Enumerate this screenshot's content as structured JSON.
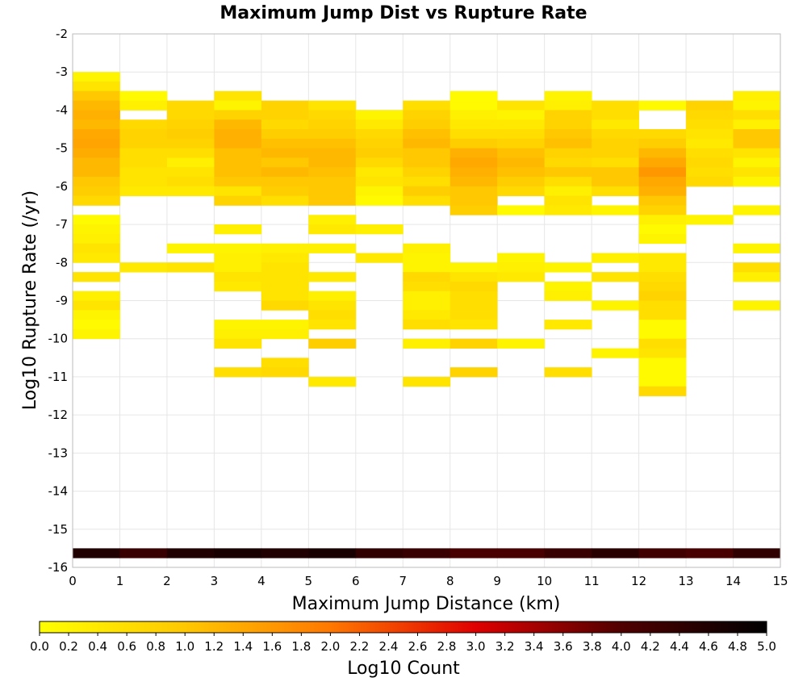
{
  "chart_data": {
    "type": "heatmap",
    "title": "Maximum Jump Dist vs Rupture Rate",
    "xlabel": "Maximum Jump Distance (km)",
    "ylabel": "Log10 Rupture Rate (/yr)",
    "xlim": [
      0,
      15
    ],
    "ylim": [
      -16,
      -2
    ],
    "x_ticks": [
      "0",
      "1",
      "2",
      "3",
      "4",
      "5",
      "6",
      "7",
      "8",
      "9",
      "10",
      "11",
      "12",
      "13",
      "14",
      "15"
    ],
    "y_ticks": [
      "-2",
      "-3",
      "-4",
      "-5",
      "-6",
      "-7",
      "-8",
      "-9",
      "-10",
      "-11",
      "-12",
      "-13",
      "-14",
      "-15",
      "-16"
    ],
    "bin_width_x": 1,
    "bin_height_y": 0.25,
    "grid": true,
    "colorbar": {
      "label": "Log10 Count",
      "min": 0.0,
      "max": 5.0,
      "ticks": [
        "0.0",
        "0.2",
        "0.4",
        "0.6",
        "0.8",
        "1.0",
        "1.2",
        "1.4",
        "1.6",
        "1.8",
        "2.0",
        "2.2",
        "2.4",
        "2.6",
        "2.8",
        "3.0",
        "3.2",
        "3.4",
        "3.6",
        "3.8",
        "4.0",
        "4.2",
        "4.4",
        "4.6",
        "4.8",
        "5.0"
      ],
      "colors": [
        "#ffff00",
        "#ffc800",
        "#ff7800",
        "#e00000",
        "#500000",
        "#000000"
      ]
    },
    "cells": [
      [
        0,
        -3.25,
        0.2
      ],
      [
        0,
        -3.5,
        0.5
      ],
      [
        0,
        -3.75,
        1.0
      ],
      [
        0,
        -4.0,
        1.2
      ],
      [
        0,
        -4.25,
        1.3
      ],
      [
        0,
        -4.5,
        1.2
      ],
      [
        0,
        -4.75,
        1.4
      ],
      [
        0,
        -5.0,
        1.45
      ],
      [
        0,
        -5.25,
        1.35
      ],
      [
        0,
        -5.5,
        1.2
      ],
      [
        0,
        -5.75,
        1.2
      ],
      [
        0,
        -6.0,
        1.0
      ],
      [
        0,
        -6.25,
        0.9
      ],
      [
        0,
        -6.5,
        0.7
      ],
      [
        0,
        -7.0,
        0.1
      ],
      [
        0,
        -7.25,
        0.2
      ],
      [
        0,
        -7.5,
        0.3
      ],
      [
        0,
        -7.75,
        0.5
      ],
      [
        0,
        -8.0,
        0.4
      ],
      [
        0,
        -8.5,
        0.5
      ],
      [
        0,
        -9.0,
        0.3
      ],
      [
        0,
        -9.25,
        0.5
      ],
      [
        0,
        -9.5,
        0.2
      ],
      [
        0,
        -9.75,
        0.1
      ],
      [
        0,
        -10.0,
        0.2
      ],
      [
        1,
        -3.75,
        0.1
      ],
      [
        1,
        -4.0,
        0.3
      ],
      [
        1,
        -4.5,
        0.7
      ],
      [
        1,
        -4.75,
        0.8
      ],
      [
        1,
        -5.0,
        0.8
      ],
      [
        1,
        -5.25,
        0.6
      ],
      [
        1,
        -5.5,
        0.6
      ],
      [
        1,
        -5.75,
        0.5
      ],
      [
        1,
        -6.0,
        0.5
      ],
      [
        1,
        -6.25,
        0.4
      ],
      [
        1,
        -8.25,
        0.4
      ],
      [
        2,
        -4.0,
        0.7
      ],
      [
        2,
        -4.25,
        0.7
      ],
      [
        2,
        -4.5,
        0.8
      ],
      [
        2,
        -4.75,
        0.9
      ],
      [
        2,
        -5.0,
        0.8
      ],
      [
        2,
        -5.25,
        0.6
      ],
      [
        2,
        -5.5,
        0.3
      ],
      [
        2,
        -5.75,
        0.5
      ],
      [
        2,
        -6.0,
        0.6
      ],
      [
        2,
        -6.25,
        0.4
      ],
      [
        2,
        -7.75,
        0.2
      ],
      [
        2,
        -8.25,
        0.5
      ],
      [
        3,
        -3.75,
        0.5
      ],
      [
        3,
        -4.0,
        0.2
      ],
      [
        3,
        -4.25,
        0.8
      ],
      [
        3,
        -4.5,
        1.2
      ],
      [
        3,
        -4.75,
        1.3
      ],
      [
        3,
        -5.0,
        1.3
      ],
      [
        3,
        -5.25,
        1.1
      ],
      [
        3,
        -5.5,
        1.1
      ],
      [
        3,
        -5.75,
        1.1
      ],
      [
        3,
        -6.0,
        1.0
      ],
      [
        3,
        -6.25,
        0.5
      ],
      [
        3,
        -6.5,
        0.8
      ],
      [
        3,
        -7.25,
        0.3
      ],
      [
        3,
        -7.75,
        0.2
      ],
      [
        3,
        -8.0,
        0.3
      ],
      [
        3,
        -8.25,
        0.3
      ],
      [
        3,
        -8.5,
        0.5
      ],
      [
        3,
        -8.75,
        0.4
      ],
      [
        3,
        -9.75,
        0.2
      ],
      [
        3,
        -10.0,
        0.3
      ],
      [
        3,
        -10.25,
        0.5
      ],
      [
        3,
        -11.0,
        0.6
      ],
      [
        4,
        -4.0,
        0.8
      ],
      [
        4,
        -4.25,
        0.8
      ],
      [
        4,
        -4.5,
        0.7
      ],
      [
        4,
        -4.75,
        0.9
      ],
      [
        4,
        -5.0,
        1.1
      ],
      [
        4,
        -5.25,
        1.2
      ],
      [
        4,
        -5.5,
        1.0
      ],
      [
        4,
        -5.75,
        1.2
      ],
      [
        4,
        -6.0,
        1.0
      ],
      [
        4,
        -6.25,
        0.9
      ],
      [
        4,
        -6.5,
        0.6
      ],
      [
        4,
        -7.75,
        0.3
      ],
      [
        4,
        -8.0,
        0.4
      ],
      [
        4,
        -8.25,
        0.5
      ],
      [
        4,
        -8.5,
        0.5
      ],
      [
        4,
        -8.75,
        0.5
      ],
      [
        4,
        -9.0,
        0.5
      ],
      [
        4,
        -9.25,
        0.7
      ],
      [
        4,
        -9.75,
        0.2
      ],
      [
        4,
        -10.0,
        0.3
      ],
      [
        4,
        -10.75,
        0.6
      ],
      [
        4,
        -11.0,
        0.7
      ],
      [
        5,
        -4.0,
        0.5
      ],
      [
        5,
        -4.25,
        0.7
      ],
      [
        5,
        -4.5,
        0.8
      ],
      [
        5,
        -4.75,
        0.9
      ],
      [
        5,
        -5.0,
        1.1
      ],
      [
        5,
        -5.25,
        1.2
      ],
      [
        5,
        -5.5,
        1.2
      ],
      [
        5,
        -5.75,
        1.1
      ],
      [
        5,
        -6.0,
        1.0
      ],
      [
        5,
        -6.25,
        1.0
      ],
      [
        5,
        -6.5,
        1.0
      ],
      [
        5,
        -7.0,
        0.3
      ],
      [
        5,
        -7.25,
        0.4
      ],
      [
        5,
        -7.75,
        0.3
      ],
      [
        5,
        -8.5,
        0.4
      ],
      [
        5,
        -9.0,
        0.3
      ],
      [
        5,
        -9.25,
        0.5
      ],
      [
        5,
        -9.5,
        0.6
      ],
      [
        5,
        -9.75,
        0.5
      ],
      [
        5,
        -10.25,
        0.9
      ],
      [
        5,
        -11.25,
        0.4
      ],
      [
        6,
        -4.25,
        0.2
      ],
      [
        6,
        -4.5,
        0.4
      ],
      [
        6,
        -4.75,
        0.7
      ],
      [
        6,
        -5.0,
        0.8
      ],
      [
        6,
        -5.25,
        0.9
      ],
      [
        6,
        -5.5,
        0.7
      ],
      [
        6,
        -5.75,
        0.4
      ],
      [
        6,
        -6.0,
        0.5
      ],
      [
        6,
        -6.25,
        0.2
      ],
      [
        6,
        -6.5,
        0.1
      ],
      [
        6,
        -7.25,
        0.3
      ],
      [
        6,
        -8.0,
        0.4
      ],
      [
        7,
        -4.0,
        0.6
      ],
      [
        7,
        -4.25,
        0.8
      ],
      [
        7,
        -4.5,
        0.9
      ],
      [
        7,
        -4.75,
        1.1
      ],
      [
        7,
        -5.0,
        1.2
      ],
      [
        7,
        -5.25,
        1.0
      ],
      [
        7,
        -5.5,
        1.0
      ],
      [
        7,
        -5.75,
        0.8
      ],
      [
        7,
        -6.0,
        0.6
      ],
      [
        7,
        -6.25,
        0.9
      ],
      [
        7,
        -6.5,
        0.6
      ],
      [
        7,
        -7.75,
        0.3
      ],
      [
        7,
        -8.0,
        0.2
      ],
      [
        7,
        -8.25,
        0.2
      ],
      [
        7,
        -8.5,
        0.7
      ],
      [
        7,
        -8.75,
        0.6
      ],
      [
        7,
        -9.0,
        0.3
      ],
      [
        7,
        -9.25,
        0.3
      ],
      [
        7,
        -9.5,
        0.4
      ],
      [
        7,
        -9.75,
        0.6
      ],
      [
        7,
        -10.25,
        0.3
      ],
      [
        7,
        -11.25,
        0.5
      ],
      [
        8,
        -3.75,
        0.1
      ],
      [
        8,
        -4.0,
        0.1
      ],
      [
        8,
        -4.25,
        0.3
      ],
      [
        8,
        -4.5,
        0.4
      ],
      [
        8,
        -4.75,
        0.6
      ],
      [
        8,
        -5.0,
        0.9
      ],
      [
        8,
        -5.25,
        1.3
      ],
      [
        8,
        -5.5,
        1.4
      ],
      [
        8,
        -5.75,
        1.3
      ],
      [
        8,
        -6.0,
        1.2
      ],
      [
        8,
        -6.25,
        1.0
      ],
      [
        8,
        -6.5,
        1.0
      ],
      [
        8,
        -6.75,
        0.9
      ],
      [
        8,
        -8.25,
        0.2
      ],
      [
        8,
        -8.5,
        0.5
      ],
      [
        8,
        -8.75,
        0.7
      ],
      [
        8,
        -9.0,
        0.6
      ],
      [
        8,
        -9.25,
        0.6
      ],
      [
        8,
        -9.5,
        0.6
      ],
      [
        8,
        -9.75,
        0.5
      ],
      [
        8,
        -10.25,
        0.8
      ],
      [
        8,
        -11.0,
        0.8
      ],
      [
        9,
        -4.0,
        0.5
      ],
      [
        9,
        -4.25,
        0.2
      ],
      [
        9,
        -4.5,
        0.4
      ],
      [
        9,
        -4.75,
        0.6
      ],
      [
        9,
        -5.0,
        0.8
      ],
      [
        9,
        -5.25,
        1.1
      ],
      [
        9,
        -5.5,
        1.2
      ],
      [
        9,
        -5.75,
        1.1
      ],
      [
        9,
        -6.0,
        0.9
      ],
      [
        9,
        -6.25,
        0.7
      ],
      [
        9,
        -6.75,
        0.1
      ],
      [
        9,
        -8.0,
        0.2
      ],
      [
        9,
        -8.25,
        0.3
      ],
      [
        9,
        -8.5,
        0.4
      ],
      [
        9,
        -10.25,
        0.2
      ],
      [
        10,
        -3.75,
        0.2
      ],
      [
        10,
        -4.0,
        0.3
      ],
      [
        10,
        -4.25,
        0.8
      ],
      [
        10,
        -4.5,
        0.8
      ],
      [
        10,
        -4.75,
        1.0
      ],
      [
        10,
        -5.0,
        1.1
      ],
      [
        10,
        -5.25,
        0.8
      ],
      [
        10,
        -5.5,
        0.7
      ],
      [
        10,
        -5.75,
        1.0
      ],
      [
        10,
        -6.0,
        0.6
      ],
      [
        10,
        -6.25,
        0.3
      ],
      [
        10,
        -6.5,
        0.5
      ],
      [
        10,
        -6.75,
        0.4
      ],
      [
        10,
        -8.25,
        0.2
      ],
      [
        10,
        -8.75,
        0.2
      ],
      [
        10,
        -9.0,
        0.3
      ],
      [
        10,
        -9.75,
        0.4
      ],
      [
        10,
        -11.0,
        0.6
      ],
      [
        11,
        -4.0,
        0.6
      ],
      [
        11,
        -4.25,
        0.6
      ],
      [
        11,
        -4.5,
        0.4
      ],
      [
        11,
        -4.75,
        0.7
      ],
      [
        11,
        -5.0,
        0.8
      ],
      [
        11,
        -5.25,
        0.8
      ],
      [
        11,
        -5.5,
        0.6
      ],
      [
        11,
        -5.75,
        1.0
      ],
      [
        11,
        -6.0,
        1.0
      ],
      [
        11,
        -6.25,
        0.6
      ],
      [
        11,
        -6.75,
        0.2
      ],
      [
        11,
        -8.0,
        0.3
      ],
      [
        11,
        -8.5,
        0.5
      ],
      [
        11,
        -9.25,
        0.2
      ],
      [
        11,
        -10.5,
        0.2
      ],
      [
        12,
        -4.0,
        0.1
      ],
      [
        12,
        -4.75,
        0.7
      ],
      [
        12,
        -5.0,
        0.9
      ],
      [
        12,
        -5.25,
        1.2
      ],
      [
        12,
        -5.5,
        1.4
      ],
      [
        12,
        -5.75,
        1.6
      ],
      [
        12,
        -6.0,
        1.4
      ],
      [
        12,
        -6.25,
        1.3
      ],
      [
        12,
        -6.5,
        1.0
      ],
      [
        12,
        -6.75,
        0.8
      ],
      [
        12,
        -7.0,
        0.3
      ],
      [
        12,
        -7.25,
        0.1
      ],
      [
        12,
        -7.5,
        0.2
      ],
      [
        12,
        -8.0,
        0.4
      ],
      [
        12,
        -8.25,
        0.4
      ],
      [
        12,
        -8.5,
        0.6
      ],
      [
        12,
        -8.75,
        0.7
      ],
      [
        12,
        -9.0,
        0.8
      ],
      [
        12,
        -9.25,
        0.6
      ],
      [
        12,
        -9.5,
        0.6
      ],
      [
        12,
        -9.75,
        0.1
      ],
      [
        12,
        -10.0,
        0.1
      ],
      [
        12,
        -10.25,
        0.6
      ],
      [
        12,
        -10.5,
        0.5
      ],
      [
        12,
        -10.75,
        0.1
      ],
      [
        12,
        -11.0,
        0.1
      ],
      [
        12,
        -11.25,
        0.1
      ],
      [
        12,
        -11.5,
        0.7
      ],
      [
        13,
        -4.0,
        0.8
      ],
      [
        13,
        -4.25,
        0.7
      ],
      [
        13,
        -4.5,
        0.6
      ],
      [
        13,
        -4.75,
        0.5
      ],
      [
        13,
        -5.0,
        0.4
      ],
      [
        13,
        -5.25,
        0.6
      ],
      [
        13,
        -5.5,
        0.7
      ],
      [
        13,
        -5.75,
        0.6
      ],
      [
        13,
        -6.0,
        0.7
      ],
      [
        13,
        -7.0,
        0.2
      ],
      [
        14,
        -3.75,
        0.3
      ],
      [
        14,
        -4.0,
        0.2
      ],
      [
        14,
        -4.25,
        0.6
      ],
      [
        14,
        -4.5,
        0.3
      ],
      [
        14,
        -4.75,
        1.0
      ],
      [
        14,
        -5.0,
        1.0
      ],
      [
        14,
        -5.25,
        0.5
      ],
      [
        14,
        -5.5,
        0.2
      ],
      [
        14,
        -5.75,
        0.5
      ],
      [
        14,
        -6.0,
        0.2
      ],
      [
        14,
        -6.75,
        0.2
      ],
      [
        14,
        -7.75,
        0.2
      ],
      [
        14,
        -8.25,
        0.6
      ],
      [
        14,
        -8.5,
        0.3
      ],
      [
        14,
        -9.25,
        0.2
      ],
      [
        0,
        -15.75,
        4.6
      ],
      [
        1,
        -15.75,
        4.3
      ],
      [
        2,
        -15.75,
        4.6
      ],
      [
        3,
        -15.75,
        4.7
      ],
      [
        4,
        -15.75,
        4.6
      ],
      [
        5,
        -15.75,
        4.7
      ],
      [
        6,
        -15.75,
        4.4
      ],
      [
        7,
        -15.75,
        4.3
      ],
      [
        8,
        -15.75,
        4.1
      ],
      [
        9,
        -15.75,
        4.1
      ],
      [
        10,
        -15.75,
        4.3
      ],
      [
        11,
        -15.75,
        4.5
      ],
      [
        12,
        -15.75,
        4.2
      ],
      [
        13,
        -15.75,
        4.1
      ],
      [
        14,
        -15.75,
        4.4
      ]
    ]
  }
}
